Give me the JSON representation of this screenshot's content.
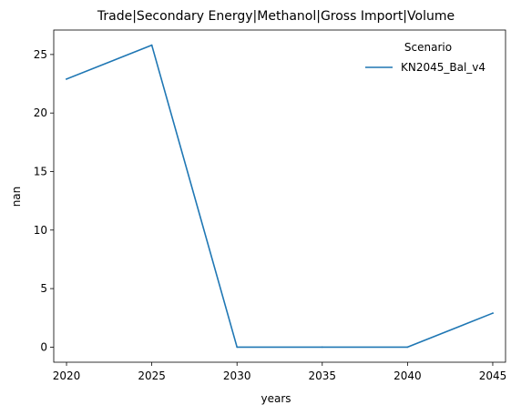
{
  "chart_data": {
    "type": "line",
    "title": "Trade|Secondary Energy|Methanol|Gross Import|Volume",
    "xlabel": "years",
    "ylabel": "nan",
    "x": [
      2020,
      2025,
      2030,
      2035,
      2040,
      2045
    ],
    "series": [
      {
        "name": "KN2045_Bal_v4",
        "values": [
          22.9,
          25.8,
          0.0,
          0.0,
          0.0,
          2.9
        ],
        "color": "#1f77b4"
      }
    ],
    "xticks": [
      2020,
      2025,
      2030,
      2035,
      2040,
      2045
    ],
    "yticks": [
      0,
      5,
      10,
      15,
      20,
      25
    ],
    "xlim": [
      2019.25,
      2045.75
    ],
    "ylim": [
      -1.29,
      27.09
    ],
    "legend": {
      "title": "Scenario",
      "placement": "top-right"
    },
    "grid": false
  }
}
